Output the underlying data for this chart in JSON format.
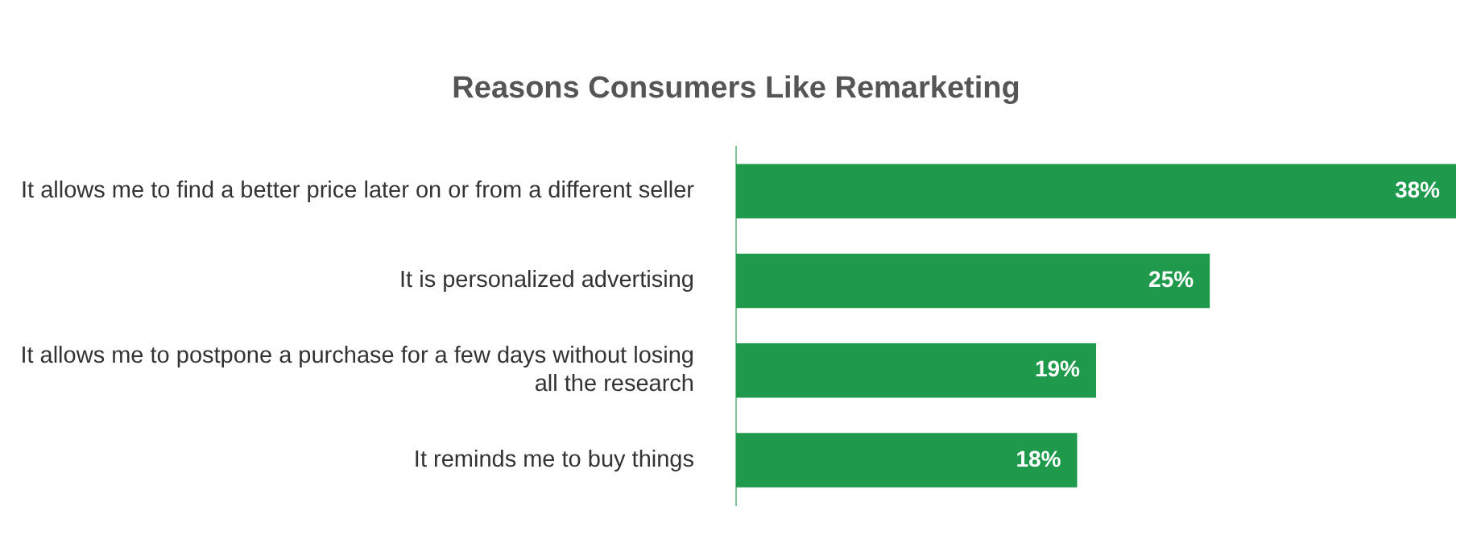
{
  "chart_data": {
    "type": "bar",
    "orientation": "horizontal",
    "title": "Reasons Consumers Like Remarketing",
    "categories": [
      "It allows me to find a better price later on or from a different seller",
      "It is personalized advertising",
      "It allows me to postpone a purchase for a few days without losing all the research",
      "It reminds me to buy things"
    ],
    "values": [
      38,
      25,
      19,
      18
    ],
    "value_labels": [
      "38%",
      "25%",
      "19%",
      "18%"
    ],
    "color": "#1f9a4c",
    "xlim": [
      0,
      38
    ],
    "tick_labels": "y",
    "legend": false
  }
}
